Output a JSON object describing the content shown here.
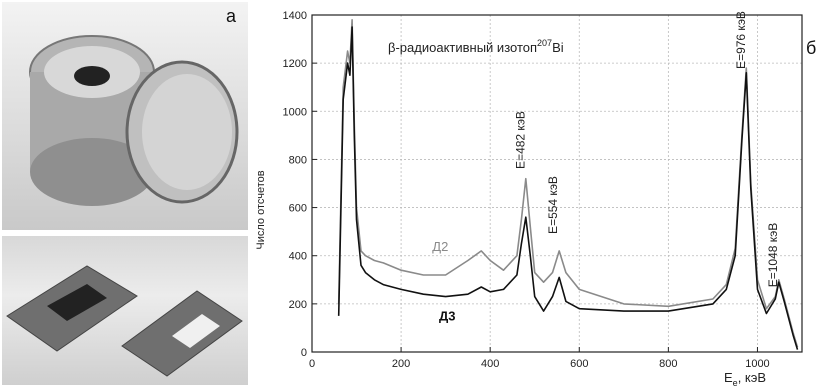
{
  "panels": {
    "a_label": "а",
    "b_label": "б"
  },
  "chart_data": {
    "type": "line",
    "title": "β-радиоактивный изотоп",
    "title_superscript": "207",
    "title_suffix": "Bi",
    "xlabel": "E",
    "xlabel_subscript": "e",
    "xlabel_unit": ", кэВ",
    "ylabel": "Число отсчетов",
    "xlim": [
      0,
      1100
    ],
    "ylim": [
      0,
      1400
    ],
    "xticks": [
      0,
      200,
      400,
      600,
      800,
      1000
    ],
    "yticks": [
      0,
      200,
      400,
      600,
      800,
      1000,
      1200,
      1400
    ],
    "grid": true,
    "colors": {
      "d2": "#8a8a8a",
      "d3": "#111111"
    },
    "series": [
      {
        "name": "Д2",
        "x": [
          60,
          70,
          80,
          85,
          90,
          95,
          100,
          110,
          120,
          140,
          160,
          200,
          250,
          300,
          350,
          380,
          400,
          430,
          460,
          470,
          480,
          490,
          500,
          520,
          540,
          555,
          570,
          600,
          700,
          800,
          900,
          930,
          950,
          965,
          975,
          985,
          1000,
          1020,
          1040,
          1048,
          1060,
          1080,
          1090
        ],
        "y": [
          200,
          1100,
          1250,
          1200,
          1380,
          950,
          600,
          420,
          400,
          380,
          370,
          340,
          320,
          320,
          380,
          420,
          380,
          340,
          400,
          550,
          720,
          520,
          330,
          290,
          330,
          420,
          330,
          260,
          200,
          190,
          220,
          280,
          430,
          900,
          1180,
          700,
          300,
          180,
          230,
          300,
          220,
          80,
          20
        ]
      },
      {
        "name": "Д3",
        "x": [
          60,
          70,
          80,
          85,
          90,
          95,
          100,
          110,
          120,
          140,
          160,
          200,
          250,
          300,
          350,
          380,
          400,
          430,
          460,
          470,
          480,
          490,
          500,
          520,
          540,
          555,
          570,
          600,
          700,
          800,
          900,
          930,
          950,
          965,
          975,
          985,
          1000,
          1020,
          1040,
          1048,
          1060,
          1080,
          1090
        ],
        "y": [
          150,
          1050,
          1200,
          1150,
          1350,
          900,
          550,
          360,
          330,
          300,
          280,
          260,
          240,
          230,
          240,
          270,
          250,
          260,
          320,
          450,
          560,
          400,
          230,
          170,
          230,
          310,
          210,
          180,
          170,
          170,
          200,
          260,
          400,
          880,
          1160,
          680,
          260,
          160,
          220,
          290,
          210,
          70,
          10
        ]
      }
    ],
    "annotations": [
      "E=482 кэВ",
      "E=554 кэВ",
      "E=976 кэВ",
      "E=1048 кэВ"
    ],
    "annotation_x": [
      482,
      554,
      976,
      1048
    ],
    "series_labels": [
      "Д2",
      "Д3"
    ]
  }
}
